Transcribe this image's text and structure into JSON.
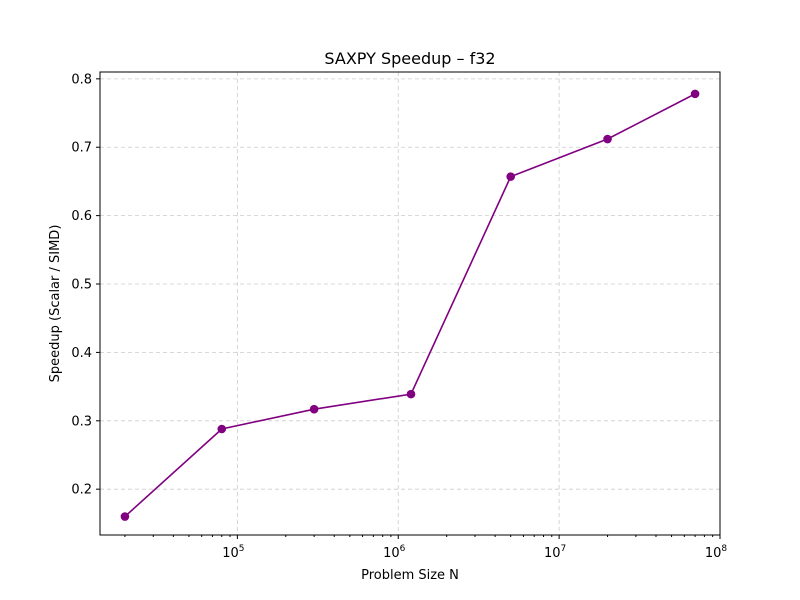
{
  "chart_data": {
    "type": "line",
    "title": "SAXPY Speedup – f32",
    "xlabel": "Problem Size N",
    "ylabel": "Speedup (Scalar / SIMD)",
    "xscale": "log",
    "xlim": [
      14000,
      100000000
    ],
    "ylim": [
      0.133,
      0.81
    ],
    "grid": true,
    "x_ticks": [
      {
        "value": 100000,
        "base": "10",
        "exp": "5"
      },
      {
        "value": 1000000,
        "base": "10",
        "exp": "6"
      },
      {
        "value": 10000000,
        "base": "10",
        "exp": "7"
      },
      {
        "value": 100000000,
        "base": "10",
        "exp": "8"
      }
    ],
    "y_ticks": [
      {
        "value": 0.2,
        "label": "0.2"
      },
      {
        "value": 0.3,
        "label": "0.3"
      },
      {
        "value": 0.4,
        "label": "0.4"
      },
      {
        "value": 0.5,
        "label": "0.5"
      },
      {
        "value": 0.6,
        "label": "0.6"
      },
      {
        "value": 0.7,
        "label": "0.7"
      },
      {
        "value": 0.8,
        "label": "0.8"
      }
    ],
    "series": [
      {
        "color": "#800080",
        "marker": "circle",
        "x": [
          20000,
          80000,
          300000,
          1200000,
          5000000,
          20000000,
          70000000
        ],
        "y": [
          0.16,
          0.288,
          0.317,
          0.339,
          0.657,
          0.712,
          0.778
        ]
      }
    ]
  }
}
